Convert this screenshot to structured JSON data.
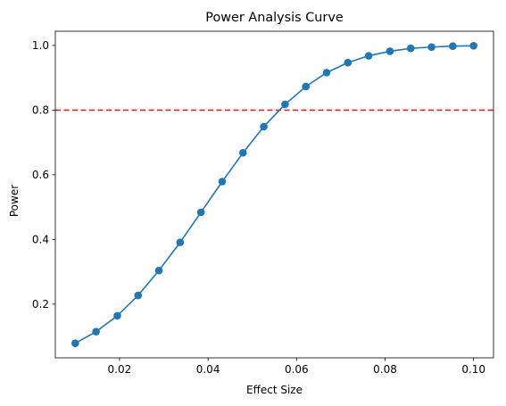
{
  "chart_data": {
    "type": "line",
    "title": "Power Analysis Curve",
    "xlabel": "Effect Size",
    "ylabel": "Power",
    "xlim": [
      0.0055,
      0.1045
    ],
    "ylim": [
      0.034,
      1.044
    ],
    "x_ticks": [
      0.02,
      0.04,
      0.06,
      0.08,
      0.1
    ],
    "x_tick_labels": [
      "0.02",
      "0.04",
      "0.06",
      "0.08",
      "0.10"
    ],
    "y_ticks": [
      0.2,
      0.4,
      0.6,
      0.8,
      1.0
    ],
    "y_tick_labels": [
      "0.2",
      "0.4",
      "0.6",
      "0.8",
      "1.0"
    ],
    "grid": false,
    "series": [
      {
        "color": "#1f77b4",
        "marker": "circle",
        "x": [
          0.01,
          0.0147,
          0.0195,
          0.0242,
          0.0289,
          0.0337,
          0.0384,
          0.0432,
          0.0479,
          0.0526,
          0.0574,
          0.0621,
          0.0668,
          0.0716,
          0.0763,
          0.0811,
          0.0858,
          0.0905,
          0.0953,
          0.1
        ],
        "y": [
          0.079,
          0.115,
          0.164,
          0.227,
          0.304,
          0.391,
          0.484,
          0.579,
          0.668,
          0.749,
          0.818,
          0.873,
          0.916,
          0.947,
          0.968,
          0.982,
          0.991,
          0.995,
          0.998,
          0.999
        ]
      }
    ],
    "reference_line": {
      "orientation": "horizontal",
      "y": 0.8,
      "color": "#d62728",
      "style": "dashed"
    }
  }
}
